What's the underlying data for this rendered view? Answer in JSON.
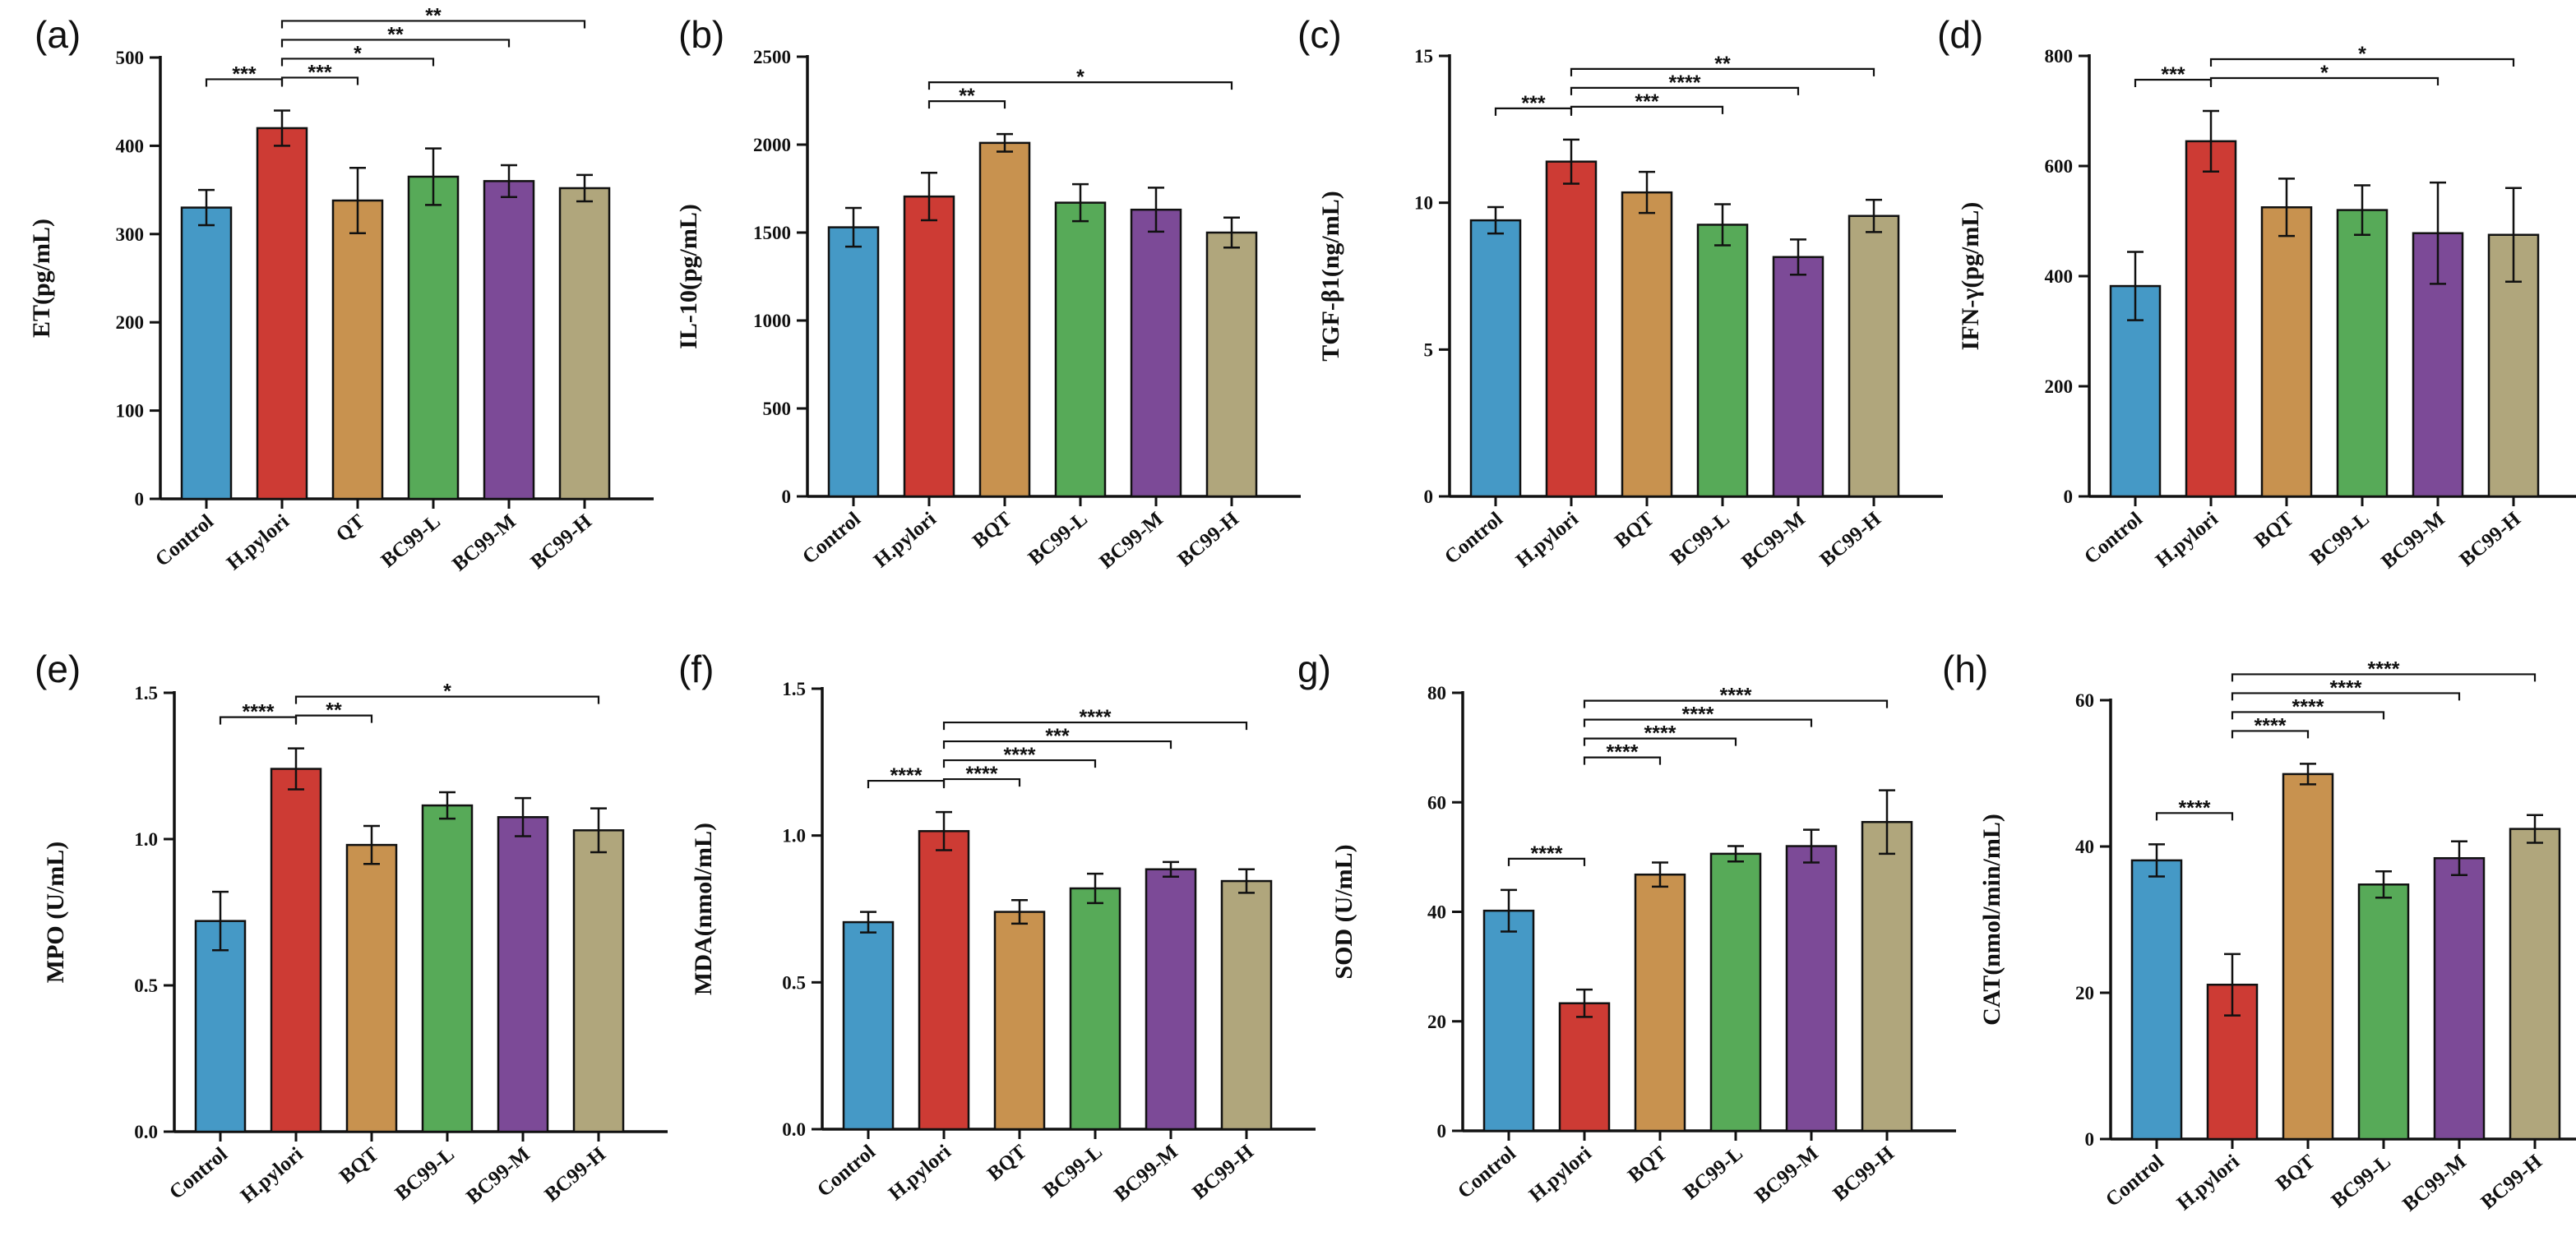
{
  "colors": {
    "control": "#4599c6",
    "hpylori": "#cd3b34",
    "treatment": "#c8924f",
    "low": "#57aa58",
    "mid": "#7c4a97",
    "high": "#b0a67c"
  },
  "chart_data": [
    {
      "type": "bar",
      "panel": "(a)",
      "ylabel": "ET(pg/mL)",
      "ylim": [
        0,
        500
      ],
      "yticks": [
        0,
        100,
        200,
        300,
        400,
        500
      ],
      "categories": [
        "Control",
        "H.pylori",
        "QT",
        "BC99-L",
        "BC99-M",
        "BC99-H"
      ],
      "values": [
        330,
        420,
        338,
        365,
        360,
        352
      ],
      "errors": [
        20,
        20,
        37,
        32,
        18,
        15
      ],
      "significance": [
        {
          "from": 0,
          "to": 1,
          "label": "***"
        },
        {
          "from": 1,
          "to": 2,
          "label": "***"
        },
        {
          "from": 1,
          "to": 3,
          "label": "*"
        },
        {
          "from": 1,
          "to": 4,
          "label": "**"
        },
        {
          "from": 1,
          "to": 5,
          "label": "**"
        }
      ]
    },
    {
      "type": "bar",
      "panel": "(b)",
      "ylabel": "IL-10(pg/mL)",
      "ylim": [
        0,
        2500
      ],
      "yticks": [
        0,
        500,
        1000,
        1500,
        2000,
        2500
      ],
      "categories": [
        "Control",
        "H.pylori",
        "BQT",
        "BC99-L",
        "BC99-M",
        "BC99-H"
      ],
      "values": [
        1530,
        1705,
        2010,
        1670,
        1630,
        1500
      ],
      "errors": [
        110,
        135,
        50,
        105,
        125,
        85
      ],
      "significance": [
        {
          "from": 1,
          "to": 2,
          "label": "**"
        },
        {
          "from": 1,
          "to": 5,
          "label": "*"
        }
      ]
    },
    {
      "type": "bar",
      "panel": "(c)",
      "ylabel": "TGF-β1(ng/mL)",
      "ylim": [
        0,
        15
      ],
      "yticks": [
        0,
        5,
        10,
        15
      ],
      "categories": [
        "Control",
        "H.pylori",
        "BQT",
        "BC99-L",
        "BC99-M",
        "BC99-H"
      ],
      "values": [
        9.4,
        11.4,
        10.35,
        9.25,
        8.15,
        9.55
      ],
      "errors": [
        0.45,
        0.75,
        0.7,
        0.7,
        0.6,
        0.55
      ],
      "significance": [
        {
          "from": 0,
          "to": 1,
          "label": "***"
        },
        {
          "from": 1,
          "to": 3,
          "label": "***"
        },
        {
          "from": 1,
          "to": 4,
          "label": "****"
        },
        {
          "from": 1,
          "to": 5,
          "label": "**"
        }
      ]
    },
    {
      "type": "bar",
      "panel": "(d)",
      "ylabel": "IFN-γ(pg/mL)",
      "ylim": [
        0,
        800
      ],
      "yticks": [
        0,
        200,
        400,
        600,
        800
      ],
      "categories": [
        "Control",
        "H.pylori",
        "BQT",
        "BC99-L",
        "BC99-M",
        "BC99-H"
      ],
      "values": [
        382,
        645,
        525,
        520,
        478,
        475
      ],
      "errors": [
        62,
        55,
        52,
        45,
        92,
        85
      ],
      "significance": [
        {
          "from": 0,
          "to": 1,
          "label": "***"
        },
        {
          "from": 1,
          "to": 4,
          "label": "*"
        },
        {
          "from": 1,
          "to": 5,
          "label": "*"
        }
      ]
    },
    {
      "type": "bar",
      "panel": "(e)",
      "ylabel": "MPO (U/mL)",
      "ylim": [
        0,
        1.5
      ],
      "yticks": [
        0.0,
        0.5,
        1.0,
        1.5
      ],
      "tickDecimals": 1,
      "categories": [
        "Control",
        "H.pylori",
        "BQT",
        "BC99-L",
        "BC99-M",
        "BC99-H"
      ],
      "values": [
        0.72,
        1.24,
        0.98,
        1.115,
        1.075,
        1.03
      ],
      "errors": [
        0.1,
        0.07,
        0.065,
        0.045,
        0.065,
        0.075
      ],
      "significance": [
        {
          "from": 0,
          "to": 1,
          "label": "****"
        },
        {
          "from": 1,
          "to": 2,
          "label": "**"
        },
        {
          "from": 1,
          "to": 5,
          "label": "*"
        }
      ]
    },
    {
      "type": "bar",
      "panel": "(f)",
      "ylabel": "MDA(nmol/mL)",
      "ylim": [
        0,
        1.5
      ],
      "yticks": [
        0.0,
        0.5,
        1.0,
        1.5
      ],
      "tickDecimals": 1,
      "categories": [
        "Control",
        "H.pylori",
        "BQT",
        "BC99-L",
        "BC99-M",
        "BC99-H"
      ],
      "values": [
        0.705,
        1.015,
        0.74,
        0.82,
        0.885,
        0.845
      ],
      "errors": [
        0.035,
        0.065,
        0.04,
        0.05,
        0.025,
        0.04
      ],
      "significance": [
        {
          "from": 0,
          "to": 1,
          "label": "****"
        },
        {
          "from": 1,
          "to": 2,
          "label": "****"
        },
        {
          "from": 1,
          "to": 3,
          "label": "****"
        },
        {
          "from": 1,
          "to": 4,
          "label": "***"
        },
        {
          "from": 1,
          "to": 5,
          "label": "****"
        }
      ]
    },
    {
      "type": "bar",
      "panel": "g)",
      "ylabel": "SOD (U/mL)",
      "ylim": [
        0,
        80
      ],
      "yticks": [
        0,
        20,
        40,
        60,
        80
      ],
      "categories": [
        "Control",
        "H.pylori",
        "BQT",
        "BC99-L",
        "BC99-M",
        "BC99-H"
      ],
      "values": [
        40.2,
        23.3,
        46.8,
        50.6,
        52.0,
        56.4
      ],
      "errors": [
        3.8,
        2.5,
        2.2,
        1.4,
        3.0,
        5.8
      ],
      "significance": [
        {
          "from": 0,
          "to": 1,
          "label": "****"
        },
        {
          "from": 1,
          "to": 2,
          "label": "****"
        },
        {
          "from": 1,
          "to": 3,
          "label": "****"
        },
        {
          "from": 1,
          "to": 4,
          "label": "****"
        },
        {
          "from": 1,
          "to": 5,
          "label": "****"
        }
      ]
    },
    {
      "type": "bar",
      "panel": "(h)",
      "ylabel": "CAT(nmol/min/mL)",
      "ylim": [
        0,
        60
      ],
      "yticks": [
        0,
        20,
        40,
        60
      ],
      "categories": [
        "Control",
        "H.pylori",
        "BQT",
        "BC99-L",
        "BC99-M",
        "BC99-H"
      ],
      "values": [
        38.1,
        21.1,
        49.9,
        34.8,
        38.4,
        42.4
      ],
      "errors": [
        2.2,
        4.2,
        1.4,
        1.8,
        2.3,
        1.9
      ],
      "significance": [
        {
          "from": 0,
          "to": 1,
          "label": "****"
        },
        {
          "from": 1,
          "to": 2,
          "label": "****"
        },
        {
          "from": 1,
          "to": 3,
          "label": "****"
        },
        {
          "from": 1,
          "to": 4,
          "label": "****"
        },
        {
          "from": 1,
          "to": 5,
          "label": "****"
        }
      ]
    }
  ]
}
